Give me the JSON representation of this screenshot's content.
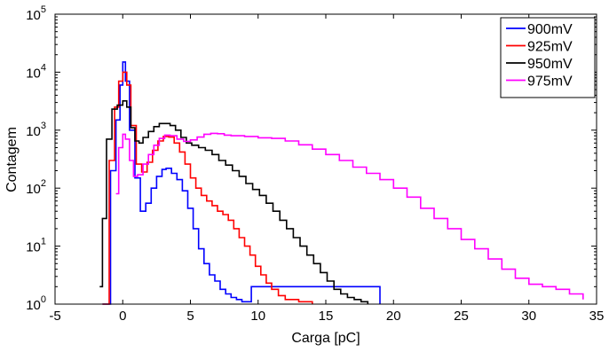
{
  "chart_data": {
    "type": "line",
    "title": "",
    "xlabel": "Carga [pC]",
    "ylabel": "Contagem",
    "xlim": [
      -5,
      35
    ],
    "ylim": [
      1,
      100000
    ],
    "yscale": "log",
    "grid": false,
    "legend_position": "top-right",
    "x_ticks": [
      -5,
      0,
      5,
      10,
      15,
      20,
      25,
      30,
      35
    ],
    "x_tick_labels": [
      "-5",
      "0",
      "5",
      "10",
      "15",
      "20",
      "25",
      "30",
      "35"
    ],
    "y_ticks": [
      1,
      10,
      100,
      1000,
      10000,
      100000
    ],
    "y_tick_base": "10",
    "y_tick_exponents": [
      "0",
      "1",
      "2",
      "3",
      "4",
      "5"
    ],
    "series": [
      {
        "name": "900mV",
        "color": "#0000ff",
        "x": [
          -1.5,
          -0.9,
          -0.5,
          -0.2,
          0.0,
          0.2,
          0.5,
          0.9,
          1.3,
          1.7,
          2.1,
          2.5,
          2.9,
          3.2,
          3.6,
          4.0,
          4.4,
          4.8,
          5.2,
          5.6,
          6.0,
          6.4,
          6.8,
          7.2,
          7.6,
          8.0,
          8.4,
          8.8,
          9.5,
          10.5,
          12.0,
          14.0,
          16.0,
          18.0,
          19.0
        ],
        "y": [
          1,
          200,
          1500,
          6000,
          15000,
          7000,
          1000,
          150,
          40,
          55,
          100,
          160,
          210,
          220,
          180,
          140,
          90,
          45,
          20,
          9,
          5,
          3.2,
          2.5,
          1.8,
          1.5,
          1.3,
          1.2,
          1.1,
          2,
          2,
          2,
          2,
          2,
          2,
          1
        ]
      },
      {
        "name": "925mV",
        "color": "#ff0000",
        "x": [
          -1.5,
          -1.0,
          -0.6,
          -0.3,
          0.0,
          0.3,
          0.6,
          1.0,
          1.4,
          1.8,
          2.2,
          2.6,
          3.0,
          3.4,
          3.8,
          4.2,
          4.6,
          5.0,
          5.4,
          5.8,
          6.2,
          6.6,
          7.0,
          7.4,
          7.8,
          8.2,
          8.6,
          9.0,
          9.4,
          9.8,
          10.2,
          10.6,
          11.0,
          11.5,
          12.0,
          13.0,
          14.0
        ],
        "y": [
          1,
          300,
          2500,
          7000,
          10000,
          6000,
          1200,
          260,
          190,
          280,
          450,
          650,
          780,
          760,
          600,
          420,
          260,
          150,
          100,
          75,
          60,
          50,
          40,
          35,
          28,
          20,
          14,
          10,
          7,
          4.5,
          3.2,
          2.3,
          1.8,
          1.4,
          1.2,
          1.1,
          1
        ]
      },
      {
        "name": "950mV",
        "color": "#000000",
        "x": [
          -1.7,
          -1.5,
          -1.2,
          -0.8,
          -0.4,
          0.0,
          0.3,
          0.6,
          0.9,
          1.2,
          1.5,
          1.9,
          2.3,
          2.7,
          3.1,
          3.5,
          3.9,
          4.3,
          4.7,
          5.1,
          5.6,
          6.1,
          6.6,
          7.1,
          7.6,
          8.1,
          8.6,
          9.1,
          9.6,
          10.1,
          10.6,
          11.1,
          11.6,
          12.1,
          12.6,
          13.1,
          13.6,
          14.1,
          14.6,
          15.1,
          15.6,
          16.1,
          16.6,
          17.1,
          17.6,
          18.1
        ],
        "y": [
          2,
          30,
          700,
          2300,
          2700,
          3200,
          2500,
          1100,
          650,
          600,
          750,
          950,
          1150,
          1300,
          1300,
          1200,
          1000,
          750,
          600,
          550,
          500,
          450,
          380,
          300,
          250,
          200,
          160,
          120,
          95,
          75,
          55,
          40,
          28,
          20,
          14,
          10,
          7,
          5,
          3.5,
          2.5,
          1.8,
          1.5,
          1.3,
          1.2,
          1.1,
          1
        ]
      },
      {
        "name": "975mV",
        "color": "#ff00ff",
        "x": [
          -0.5,
          -0.3,
          0.0,
          0.2,
          0.5,
          0.8,
          1.1,
          1.5,
          1.9,
          2.3,
          2.7,
          3.1,
          3.5,
          4.0,
          4.5,
          5.0,
          5.5,
          6.0,
          6.5,
          7.0,
          7.5,
          8.0,
          9.0,
          10.0,
          11.0,
          12.0,
          13.0,
          14.0,
          15.0,
          16.0,
          17.0,
          18.0,
          19.0,
          20.0,
          21.0,
          22.0,
          23.0,
          24.0,
          25.0,
          26.0,
          27.0,
          28.0,
          29.0,
          30.0,
          31.0,
          32.0,
          33.0,
          34.0
        ],
        "y": [
          80,
          500,
          850,
          700,
          300,
          160,
          170,
          260,
          380,
          550,
          720,
          820,
          800,
          700,
          640,
          680,
          760,
          850,
          880,
          870,
          820,
          800,
          780,
          740,
          720,
          650,
          560,
          470,
          380,
          300,
          230,
          180,
          140,
          100,
          70,
          45,
          30,
          20,
          13,
          9,
          6,
          4,
          2.8,
          2.2,
          2,
          1.8,
          1.5,
          1.2
        ]
      }
    ]
  }
}
